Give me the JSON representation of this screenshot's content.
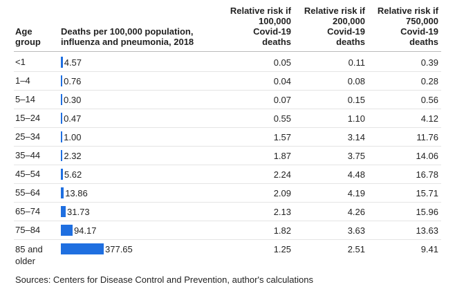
{
  "table": {
    "columns": [
      {
        "lines": [
          "Age",
          "group"
        ]
      },
      {
        "lines": [
          "Deaths per 100,000 population,",
          "influenza and pneumonia, 2018"
        ]
      },
      {
        "lines": [
          "Relative risk if",
          "100,000",
          "Covid-19",
          "deaths"
        ]
      },
      {
        "lines": [
          "Relative risk if",
          "200,000",
          "Covid-19",
          "deaths"
        ]
      },
      {
        "lines": [
          "Relative risk if",
          "750,000",
          "Covid-19",
          "deaths"
        ]
      }
    ],
    "rows": [
      [
        "<1",
        "4.57",
        "0.05",
        "0.11",
        "0.39"
      ],
      [
        "1–4",
        "0.76",
        "0.04",
        "0.08",
        "0.28"
      ],
      [
        "5–14",
        "0.30",
        "0.07",
        "0.15",
        "0.56"
      ],
      [
        "15–24",
        "0.47",
        "0.55",
        "1.10",
        "4.12"
      ],
      [
        "25–34",
        "1.00",
        "1.57",
        "3.14",
        "11.76"
      ],
      [
        "35–44",
        "2.32",
        "1.87",
        "3.75",
        "14.06"
      ],
      [
        "45–54",
        "5.62",
        "2.24",
        "4.48",
        "16.78"
      ],
      [
        "55–64",
        "13.86",
        "2.09",
        "4.19",
        "15.71"
      ],
      [
        "65–74",
        "31.73",
        "2.13",
        "4.26",
        "15.96"
      ],
      [
        "75–84",
        "94.17",
        "1.82",
        "3.63",
        "13.63"
      ],
      [
        "85 and older",
        "377.65",
        "1.25",
        "2.51",
        "9.41"
      ]
    ]
  },
  "footer": {
    "source": "Sources: Centers for Disease Control and Prevention, author's calculations"
  }
}
